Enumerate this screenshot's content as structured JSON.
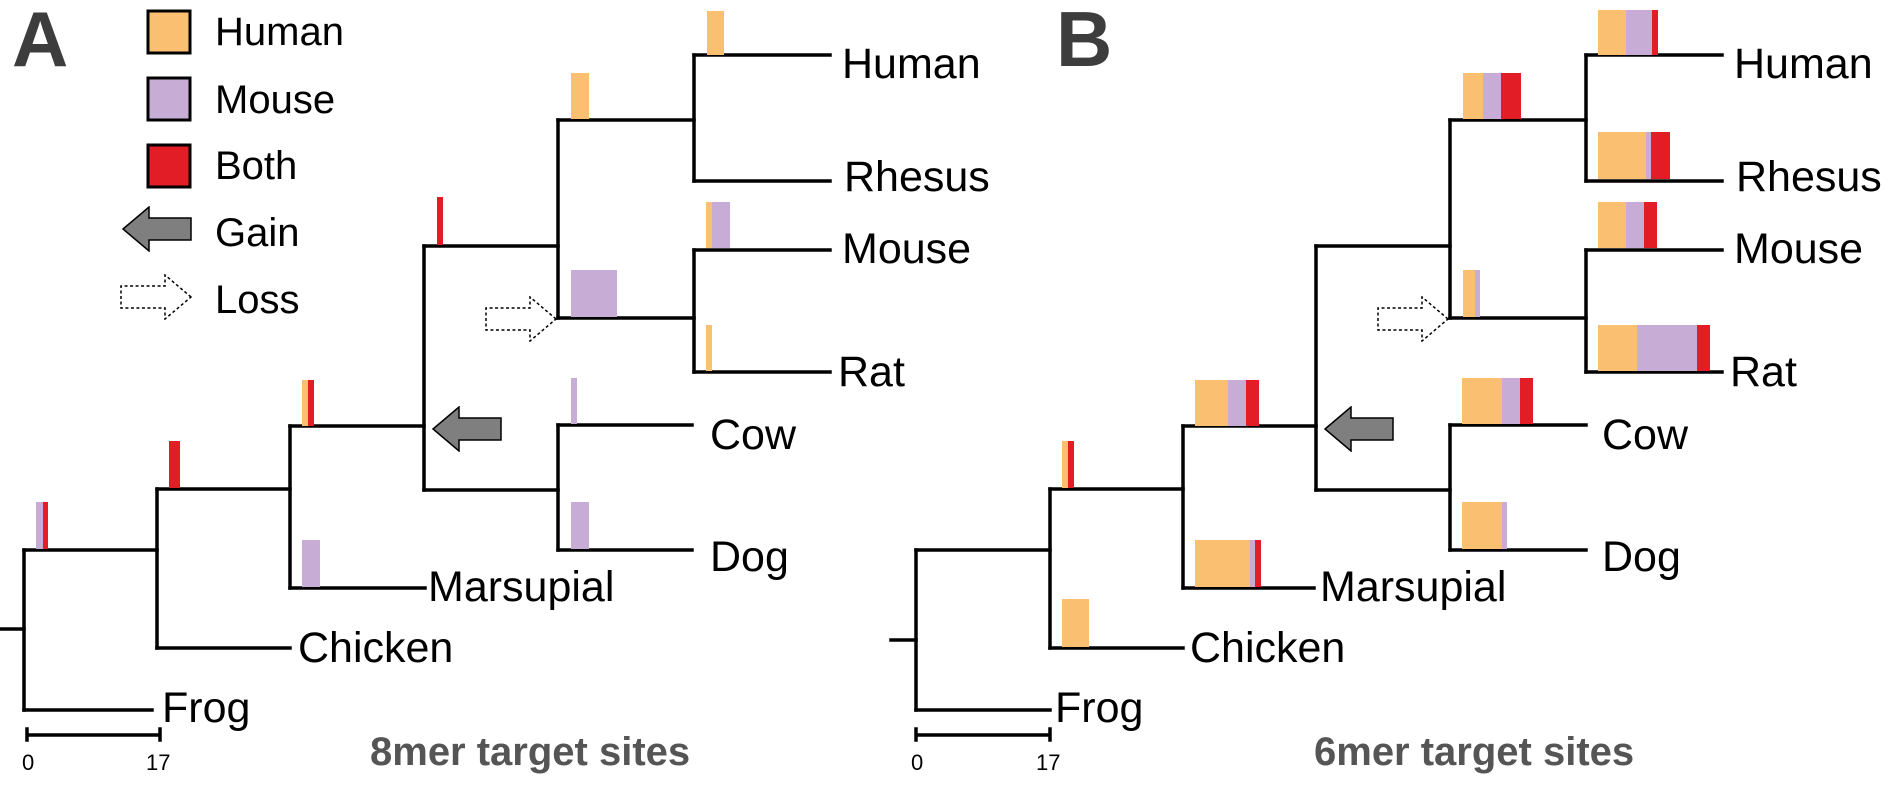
{
  "colors": {
    "human": "#FBBF72",
    "mouse": "#C7ADD6",
    "both": "#E21D25",
    "gain_arrow": "#7f7f7f",
    "line": "#000000"
  },
  "legend": {
    "human": "Human",
    "mouse": "Mouse",
    "both": "Both",
    "gain": "Gain",
    "loss": "Loss"
  },
  "panels": [
    {
      "letter": "A",
      "caption": "8mer target sites",
      "scale": {
        "min_label": "0",
        "max_label": "17"
      },
      "taxa": {
        "human": "Human",
        "rhesus": "Rhesus",
        "mouse": "Mouse",
        "rat": "Rat",
        "cow": "Cow",
        "dog": "Dog",
        "marsupial": "Marsupial",
        "chicken": "Chicken",
        "frog": "Frog"
      },
      "branch_counts": [
        {
          "branch": "human",
          "human": 4,
          "mouse": 0,
          "both": 0
        },
        {
          "branch": "primates",
          "human": 4,
          "mouse": 0,
          "both": 0
        },
        {
          "branch": "mouse",
          "human": 1,
          "mouse": 4,
          "both": 0
        },
        {
          "branch": "rat",
          "human": 1,
          "mouse": 0,
          "both": 0
        },
        {
          "branch": "rodents",
          "human": 0,
          "mouse": 10,
          "both": 0
        },
        {
          "branch": "euarchontoglires",
          "human": 0,
          "mouse": 0,
          "both": 1
        },
        {
          "branch": "cow",
          "human": 0,
          "mouse": 1,
          "both": 0
        },
        {
          "branch": "dog",
          "human": 0,
          "mouse": 4,
          "both": 0
        },
        {
          "branch": "mammals",
          "human": 1,
          "mouse": 0,
          "both": 1
        },
        {
          "branch": "marsupial",
          "human": 0,
          "mouse": 4,
          "both": 0
        },
        {
          "branch": "amniotes",
          "human": 0,
          "mouse": 0,
          "both": 3
        },
        {
          "branch": "root",
          "human": 0,
          "mouse": 1,
          "both": 1
        }
      ]
    },
    {
      "letter": "B",
      "caption": "6mer target sites",
      "scale": {
        "min_label": "0",
        "max_label": "17"
      },
      "taxa": {
        "human": "Human",
        "rhesus": "Rhesus",
        "mouse": "Mouse",
        "rat": "Rat",
        "cow": "Cow",
        "dog": "Dog",
        "marsupial": "Marsupial",
        "chicken": "Chicken",
        "frog": "Frog"
      },
      "branch_counts": [
        {
          "branch": "human",
          "human": 6,
          "mouse": 6,
          "both": 1
        },
        {
          "branch": "primates",
          "human": 4,
          "mouse": 4,
          "both": 4
        },
        {
          "branch": "rhesus",
          "human": 11,
          "mouse": 1,
          "both": 4
        },
        {
          "branch": "mouse",
          "human": 6,
          "mouse": 4,
          "both": 3
        },
        {
          "branch": "rodents",
          "human": 2,
          "mouse": 1,
          "both": 0
        },
        {
          "branch": "rat",
          "human": 9,
          "mouse": 14,
          "both": 3
        },
        {
          "branch": "laurasiatheria",
          "human": 0,
          "mouse": 0,
          "both": 0
        },
        {
          "branch": "cow",
          "human": 9,
          "mouse": 4,
          "both": 3
        },
        {
          "branch": "dog",
          "human": 9,
          "mouse": 1,
          "both": 0
        },
        {
          "branch": "mammals",
          "human": 7,
          "mouse": 4,
          "both": 3
        },
        {
          "branch": "marsupial",
          "human": 13,
          "mouse": 1,
          "both": 1
        },
        {
          "branch": "amniotes",
          "human": 1,
          "mouse": 0,
          "both": 1
        },
        {
          "branch": "chicken",
          "human": 6,
          "mouse": 0,
          "both": 0
        }
      ]
    }
  ]
}
